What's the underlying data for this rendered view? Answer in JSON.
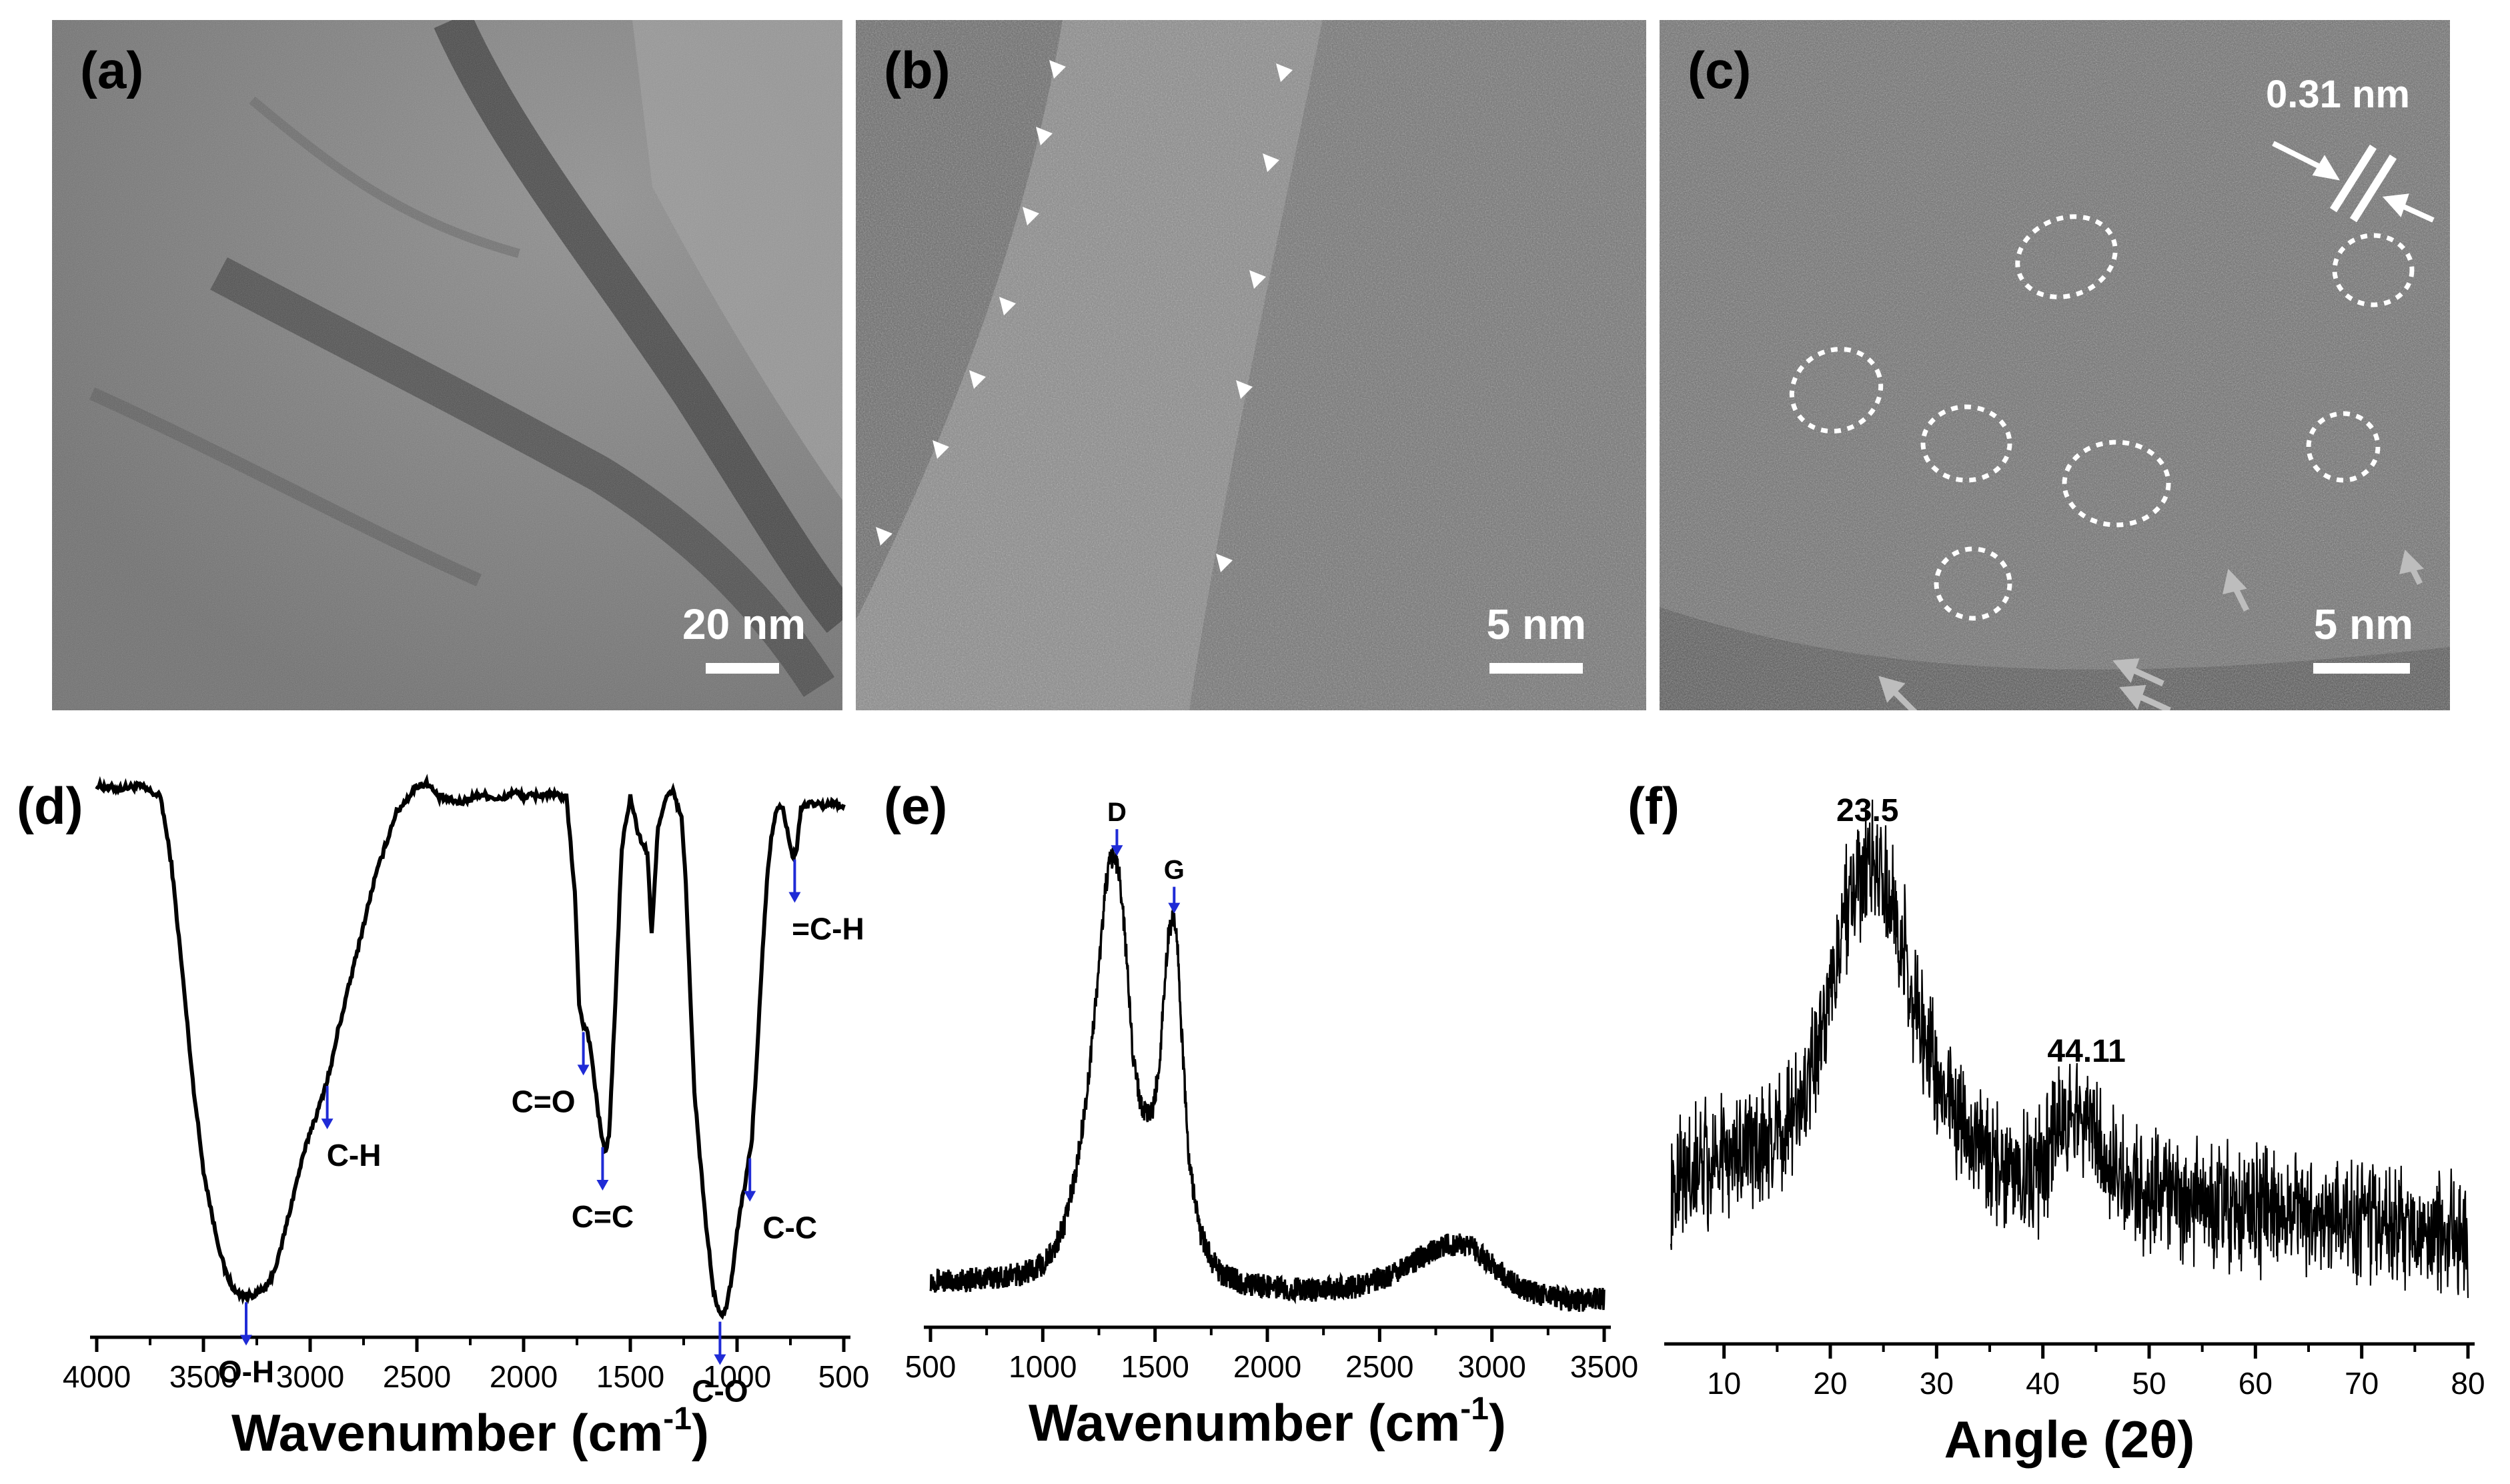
{
  "panels": {
    "a": {
      "letter": "(a)",
      "scale_bar": "20 nm"
    },
    "b": {
      "letter": "(b)",
      "scale_bar": "5 nm"
    },
    "c": {
      "letter": "(c)",
      "scale_bar": "5 nm",
      "lattice_spacing": "0.31 nm"
    }
  },
  "colors": {
    "annotation_arrow": "#1f2bd6",
    "trace": "#000000"
  },
  "chart_data": [
    {
      "panel": "(d)",
      "type": "line",
      "xlabel": "Wavenumber (cm",
      "xlabel_sup": "-1",
      "xlabel_end": ")",
      "xlim": [
        4000,
        500
      ],
      "xticks": [
        4000,
        3500,
        3000,
        2500,
        2000,
        1500,
        1000,
        500
      ],
      "ylim": [
        0,
        1
      ],
      "x": [
        4000,
        3900,
        3800,
        3700,
        3650,
        3600,
        3550,
        3500,
        3450,
        3400,
        3350,
        3300,
        3250,
        3200,
        3150,
        3100,
        3050,
        3000,
        2960,
        2930,
        2900,
        2870,
        2850,
        2800,
        2700,
        2600,
        2500,
        2450,
        2400,
        2300,
        2200,
        2100,
        2050,
        2000,
        1900,
        1800,
        1760,
        1740,
        1720,
        1700,
        1680,
        1650,
        1620,
        1600,
        1570,
        1540,
        1500,
        1460,
        1420,
        1400,
        1385,
        1370,
        1330,
        1300,
        1260,
        1240,
        1220,
        1200,
        1150,
        1110,
        1080,
        1050,
        1020,
        990,
        960,
        930,
        900,
        880,
        860,
        840,
        820,
        800,
        780,
        760,
        740,
        720,
        700,
        650,
        600,
        550,
        500
      ],
      "y": [
        0.99,
        0.985,
        0.99,
        0.97,
        0.85,
        0.66,
        0.46,
        0.3,
        0.2,
        0.12,
        0.08,
        0.075,
        0.078,
        0.09,
        0.14,
        0.22,
        0.3,
        0.37,
        0.41,
        0.45,
        0.49,
        0.55,
        0.58,
        0.66,
        0.82,
        0.94,
        0.99,
        0.995,
        0.97,
        0.96,
        0.975,
        0.965,
        0.98,
        0.97,
        0.975,
        0.97,
        0.8,
        0.6,
        0.56,
        0.55,
        0.5,
        0.4,
        0.33,
        0.36,
        0.6,
        0.88,
        0.97,
        0.9,
        0.87,
        0.72,
        0.82,
        0.92,
        0.97,
        0.98,
        0.93,
        0.82,
        0.62,
        0.44,
        0.22,
        0.08,
        0.04,
        0.05,
        0.12,
        0.22,
        0.28,
        0.36,
        0.55,
        0.7,
        0.82,
        0.9,
        0.94,
        0.96,
        0.94,
        0.9,
        0.86,
        0.88,
        0.95,
        0.96,
        0.955,
        0.96,
        0.955
      ],
      "annotations": [
        {
          "text": "O-H",
          "x": 3300
        },
        {
          "text": "C-H",
          "x": 2920
        },
        {
          "text": "C=O",
          "x": 1720
        },
        {
          "text": "C=C",
          "x": 1630
        },
        {
          "text": "C-O",
          "x": 1080
        },
        {
          "text": "C-C",
          "x": 940
        },
        {
          "text": "=C-H",
          "x": 730
        }
      ]
    },
    {
      "panel": "(e)",
      "type": "line",
      "xlabel": "Wavenumber (cm",
      "xlabel_sup": "-1",
      "xlabel_end": ")",
      "xlim": [
        500,
        3500
      ],
      "xticks": [
        500,
        1000,
        1500,
        2000,
        2500,
        3000,
        3500
      ],
      "ylim": [
        0,
        1
      ],
      "x": [
        500,
        600,
        700,
        800,
        900,
        1000,
        1050,
        1100,
        1150,
        1200,
        1250,
        1280,
        1300,
        1320,
        1340,
        1360,
        1380,
        1400,
        1430,
        1460,
        1490,
        1520,
        1540,
        1560,
        1580,
        1600,
        1620,
        1650,
        1700,
        1750,
        1800,
        1900,
        2000,
        2100,
        2200,
        2300,
        2400,
        2500,
        2600,
        2700,
        2800,
        2850,
        2900,
        3000,
        3100,
        3200,
        3300,
        3400,
        3500
      ],
      "y": [
        0.1,
        0.095,
        0.1,
        0.105,
        0.11,
        0.13,
        0.16,
        0.22,
        0.33,
        0.5,
        0.75,
        0.92,
        0.97,
        0.98,
        0.95,
        0.85,
        0.72,
        0.58,
        0.48,
        0.44,
        0.45,
        0.55,
        0.7,
        0.82,
        0.86,
        0.8,
        0.6,
        0.35,
        0.2,
        0.14,
        0.11,
        0.09,
        0.085,
        0.08,
        0.078,
        0.08,
        0.085,
        0.1,
        0.12,
        0.15,
        0.17,
        0.175,
        0.17,
        0.13,
        0.09,
        0.07,
        0.06,
        0.055,
        0.06
      ],
      "annotations": [
        {
          "text": "D",
          "x": 1330
        },
        {
          "text": "G",
          "x": 1585
        }
      ]
    },
    {
      "panel": "(f)",
      "type": "line",
      "xlabel": "Angle (2θ)",
      "xlim": [
        5,
        80
      ],
      "xticks": [
        10,
        20,
        30,
        40,
        50,
        60,
        70,
        80
      ],
      "ylim": [
        0,
        1
      ],
      "x": [
        5,
        8,
        11,
        14,
        16,
        18,
        19,
        20,
        21,
        22,
        23,
        24,
        25,
        26,
        27,
        28,
        30,
        32,
        34,
        36,
        38,
        40,
        41,
        42,
        43,
        44,
        45,
        46,
        48,
        50,
        55,
        60,
        65,
        70,
        75,
        80
      ],
      "y": [
        0.32,
        0.35,
        0.36,
        0.38,
        0.42,
        0.5,
        0.58,
        0.68,
        0.8,
        0.88,
        0.91,
        0.92,
        0.9,
        0.85,
        0.76,
        0.66,
        0.52,
        0.43,
        0.38,
        0.35,
        0.33,
        0.34,
        0.38,
        0.43,
        0.46,
        0.46,
        0.42,
        0.36,
        0.31,
        0.29,
        0.27,
        0.26,
        0.25,
        0.24,
        0.22,
        0.21
      ],
      "annotations": [
        {
          "text": "23.5",
          "x": 23.5
        },
        {
          "text": "44.11",
          "x": 44.11
        }
      ]
    }
  ]
}
